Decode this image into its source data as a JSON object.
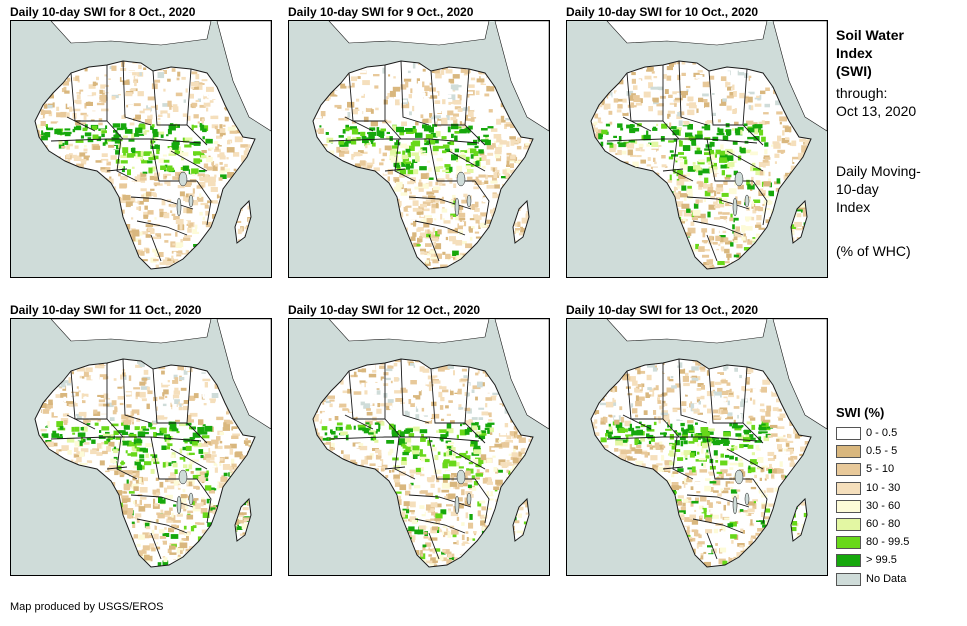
{
  "panels": [
    {
      "title": "Daily 10-day SWI for 8 Oct., 2020",
      "variant": 0
    },
    {
      "title": "Daily 10-day SWI for 9 Oct., 2020",
      "variant": 1
    },
    {
      "title": "Daily 10-day SWI for 10 Oct., 2020",
      "variant": 2
    },
    {
      "title": "Daily 10-day SWI for 11 Oct., 2020",
      "variant": 3
    },
    {
      "title": "Daily 10-day SWI for 12 Oct., 2020",
      "variant": 4
    },
    {
      "title": "Daily 10-day SWI for 13 Oct., 2020",
      "variant": 5
    }
  ],
  "side": {
    "title_lines": [
      "Soil Water",
      "Index",
      "(SWI)"
    ],
    "through_label": "through:",
    "date": "Oct 13, 2020",
    "desc_lines": [
      "Daily Moving-",
      "10-day",
      "Index"
    ],
    "units": "(% of WHC)"
  },
  "legend": {
    "title": "SWI (%)",
    "items": [
      {
        "label": "0 - 0.5",
        "color": "#ffffff"
      },
      {
        "label": "0.5 - 5",
        "color": "#d9b77e"
      },
      {
        "label": "5 - 10",
        "color": "#e8c99a"
      },
      {
        "label": "10 - 30",
        "color": "#f5dfbc"
      },
      {
        "label": "30 - 60",
        "color": "#fdfbd8"
      },
      {
        "label": "60 - 80",
        "color": "#e3f7a3"
      },
      {
        "label": "80 - 99.5",
        "color": "#68d81a"
      },
      {
        "label": "> 99.5",
        "color": "#16a80c"
      },
      {
        "label": "No Data",
        "color": "#cfdcd9"
      }
    ]
  },
  "colors": {
    "ocean": "#cfdcd9",
    "land": "#ffffff",
    "border": "#1a1a1a"
  },
  "footer": "Map produced by USGS/EROS"
}
